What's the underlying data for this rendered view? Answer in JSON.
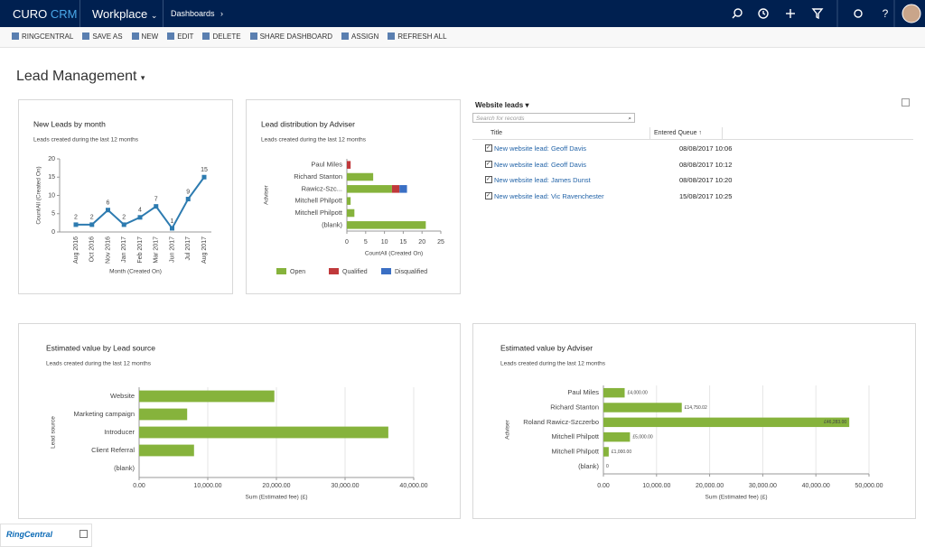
{
  "nav": {
    "brand": "CURO",
    "brand_suffix": "CRM",
    "app": "Workplace",
    "area": "Dashboards"
  },
  "toolbar": [
    "RINGCENTRAL",
    "SAVE AS",
    "NEW",
    "EDIT",
    "DELETE",
    "SHARE DASHBOARD",
    "ASSIGN",
    "REFRESH ALL"
  ],
  "dashboard_title": "Lead Management",
  "chart_data": [
    {
      "type": "line",
      "title": "New Leads by month",
      "subtitle": "Leads created during the last 12 months",
      "x_label": "Month (Created On)",
      "y_label": "CountAll (Created On)",
      "categories": [
        "Aug 2016",
        "Oct 2016",
        "Nov 2016",
        "Jan 2017",
        "Feb 2017",
        "Mar 2017",
        "Jun 2017",
        "Jul 2017",
        "Aug 2017"
      ],
      "values": [
        2,
        2,
        6,
        2,
        4,
        7,
        1,
        9,
        15
      ],
      "color": "#2d7bb0",
      "ylim": [
        0,
        20
      ],
      "yticks": [
        0,
        5,
        10,
        15,
        20
      ]
    },
    {
      "type": "bar",
      "orientation": "horizontal",
      "title": "Lead distribution by Adviser",
      "subtitle": "Leads created during the last 12 months",
      "x_label": "CountAll (Created On)",
      "y_label": "Adviser",
      "categories": [
        "Paul Miles",
        "Richard Stanton",
        "Rawicz-Szc...",
        "Mitchell Philpott",
        "Mitchell Philpott",
        "(blank)"
      ],
      "series": [
        {
          "name": "Open",
          "color": "#86b33c",
          "values": [
            0,
            7,
            12,
            1,
            2,
            21
          ]
        },
        {
          "name": "Qualified",
          "color": "#c0393b",
          "values": [
            1,
            0,
            2,
            0,
            0,
            0
          ]
        },
        {
          "name": "Disqualified",
          "color": "#3a6fc4",
          "values": [
            0,
            0,
            2,
            0,
            0,
            0
          ]
        }
      ],
      "xlim": [
        0,
        25
      ],
      "xticks": [
        0,
        5,
        10,
        15,
        20,
        25
      ],
      "legend": "bottom"
    },
    {
      "type": "bar",
      "orientation": "horizontal",
      "title": "Estimated value by Lead source",
      "subtitle": "Leads created during the last 12 months",
      "x_label": "Sum (Estimated fee) (£)",
      "y_label": "Lead source",
      "categories": [
        "Website",
        "Marketing campaign",
        "Introducer",
        "Client Referral",
        "(blank)"
      ],
      "values": [
        19700,
        7000,
        36300,
        8000,
        null
      ],
      "color": "#86b33c",
      "xlim": [
        0,
        40000
      ],
      "xticks": [
        {
          "value": 0,
          "label": "0.00"
        },
        {
          "value": 10000,
          "label": "10,000.00"
        },
        {
          "value": 20000,
          "label": "20,000.00"
        },
        {
          "value": 30000,
          "label": "30,000.00"
        },
        {
          "value": 40000,
          "label": "40,000.00"
        }
      ],
      "grid": true
    },
    {
      "type": "bar",
      "orientation": "horizontal",
      "title": "Estimated value by Adviser",
      "subtitle": "Leads created during the last 12 months",
      "x_label": "Sum (Estimated fee) (£)",
      "y_label": "Adviser",
      "categories": [
        "Paul Miles",
        "Richard Stanton",
        "Roland Rawicz-Szczerbo",
        "Mitchell Philpott",
        "Mitchell Philpott",
        "(blank)"
      ],
      "values": [
        4000,
        14750.02,
        46283,
        5000,
        1000,
        0
      ],
      "value_labels": [
        "£4,000.00",
        "£14,750.02",
        "£46,283.00",
        "£5,000.00",
        "£1,000.00",
        "0"
      ],
      "color": "#86b33c",
      "xlim": [
        0,
        50000
      ],
      "xticks": [
        {
          "value": 0,
          "label": "0.00"
        },
        {
          "value": 10000,
          "label": "10,000.00"
        },
        {
          "value": 20000,
          "label": "20,000.00"
        },
        {
          "value": 30000,
          "label": "30,000.00"
        },
        {
          "value": 40000,
          "label": "40,000.00"
        },
        {
          "value": 50000,
          "label": "50,000.00"
        }
      ],
      "grid": true
    }
  ],
  "website_leads": {
    "title": "Website leads",
    "search_placeholder": "Search for records",
    "columns": [
      "Title",
      "Entered Queue"
    ],
    "rows": [
      [
        "New website lead: Geoff Davis",
        "08/08/2017 10:06"
      ],
      [
        "New website lead: Geoff Davis",
        "08/08/2017 10:12"
      ],
      [
        "New website lead: James Dunst",
        "08/08/2017 10:20"
      ],
      [
        "New website lead: Vic Ravenchester",
        "15/08/2017 10:25"
      ]
    ]
  },
  "footer": {
    "widget": "RingCentral"
  }
}
